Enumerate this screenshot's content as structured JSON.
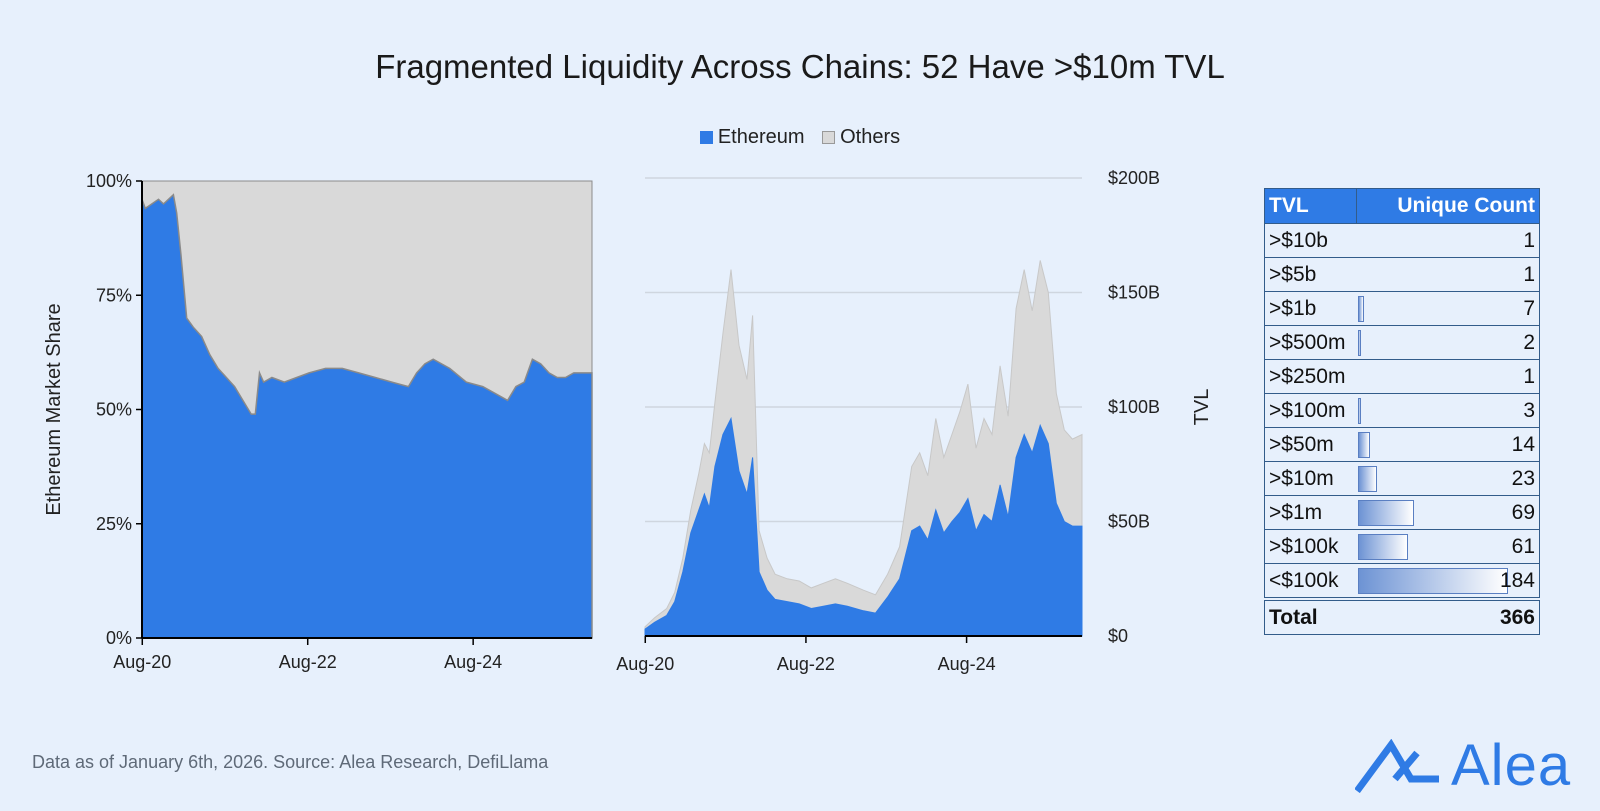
{
  "title": "Fragmented Liquidity Across Chains: 52 Have >$10m TVL",
  "legend": {
    "ethereum": "Ethereum",
    "others": "Others"
  },
  "colors": {
    "ethereum": "#2f7be5",
    "others": "#d9d9d9",
    "background": "#e7f0fc"
  },
  "chart_data": [
    {
      "type": "area",
      "title": "",
      "ylabel": "Ethereum Market Share",
      "xlabel": "",
      "ylim": [
        0,
        100
      ],
      "yticks": [
        "0%",
        "25%",
        "50%",
        "75%",
        "100%"
      ],
      "xticks": [
        "Aug-20",
        "Aug-22",
        "Aug-24"
      ],
      "x_start_year": 2020.58,
      "x_end_year": 2026.02,
      "series": [
        {
          "name": "Ethereum",
          "x": [
            2020.58,
            2020.62,
            2020.7,
            2020.78,
            2020.84,
            2020.9,
            2020.96,
            2021.0,
            2021.05,
            2021.12,
            2021.2,
            2021.3,
            2021.4,
            2021.5,
            2021.6,
            2021.7,
            2021.8,
            2021.9,
            2021.95,
            2022.0,
            2022.05,
            2022.15,
            2022.3,
            2022.45,
            2022.6,
            2022.8,
            2023.0,
            2023.2,
            2023.4,
            2023.6,
            2023.8,
            2023.9,
            2024.0,
            2024.1,
            2024.3,
            2024.5,
            2024.7,
            2024.9,
            2025.0,
            2025.1,
            2025.2,
            2025.3,
            2025.4,
            2025.5,
            2025.6,
            2025.7,
            2025.8,
            2025.9,
            2026.02
          ],
          "values": [
            96,
            94,
            95,
            96,
            95,
            96,
            97,
            93,
            84,
            70,
            68,
            66,
            62,
            59,
            57,
            55,
            52,
            49,
            49,
            58,
            56,
            57,
            56,
            57,
            58,
            59,
            59,
            58,
            57,
            56,
            55,
            58,
            60,
            61,
            59,
            56,
            55,
            53,
            52,
            55,
            56,
            61,
            60,
            58,
            57,
            57,
            58,
            58,
            58
          ],
          "color": "#2f7be5"
        },
        {
          "name": "Others",
          "values_note": "remainder to 100%",
          "color": "#d9d9d9"
        }
      ]
    },
    {
      "type": "area",
      "stacked": true,
      "title": "",
      "ylabel": "TVL",
      "ylim": [
        0,
        200
      ],
      "yticks": [
        "$0",
        "$50B",
        "$100B",
        "$150B",
        "$200B"
      ],
      "xticks": [
        "Aug-20",
        "Aug-22",
        "Aug-24"
      ],
      "x_start_year": 2020.58,
      "x_end_year": 2026.02,
      "series": [
        {
          "name": "Ethereum",
          "x": [
            2020.58,
            2020.7,
            2020.85,
            2020.95,
            2021.05,
            2021.15,
            2021.25,
            2021.32,
            2021.38,
            2021.45,
            2021.55,
            2021.65,
            2021.75,
            2021.85,
            2021.92,
            2022.0,
            2022.1,
            2022.2,
            2022.35,
            2022.5,
            2022.65,
            2022.8,
            2022.95,
            2023.1,
            2023.3,
            2023.45,
            2023.6,
            2023.75,
            2023.9,
            2024.0,
            2024.1,
            2024.2,
            2024.3,
            2024.4,
            2024.5,
            2024.6,
            2024.7,
            2024.8,
            2024.9,
            2025.0,
            2025.1,
            2025.2,
            2025.3,
            2025.4,
            2025.5,
            2025.6,
            2025.7,
            2025.8,
            2025.9,
            2026.02
          ],
          "values": [
            3,
            6,
            9,
            15,
            28,
            45,
            55,
            62,
            56,
            74,
            88,
            95,
            72,
            62,
            78,
            28,
            20,
            16,
            15,
            14,
            12,
            13,
            14,
            13,
            11,
            10,
            17,
            25,
            46,
            48,
            42,
            55,
            45,
            50,
            54,
            60,
            46,
            53,
            50,
            66,
            52,
            78,
            88,
            80,
            92,
            84,
            58,
            50,
            48,
            48
          ],
          "color": "#2f7be5"
        },
        {
          "name": "Others",
          "x": [
            2020.58,
            2020.7,
            2020.85,
            2020.95,
            2021.05,
            2021.15,
            2021.25,
            2021.32,
            2021.38,
            2021.45,
            2021.55,
            2021.65,
            2021.75,
            2021.85,
            2021.92,
            2022.0,
            2022.1,
            2022.2,
            2022.35,
            2022.5,
            2022.65,
            2022.8,
            2022.95,
            2023.1,
            2023.3,
            2023.45,
            2023.6,
            2023.75,
            2023.9,
            2024.0,
            2024.1,
            2024.2,
            2024.3,
            2024.4,
            2024.5,
            2024.6,
            2024.7,
            2024.8,
            2024.9,
            2025.0,
            2025.1,
            2025.2,
            2025.3,
            2025.4,
            2025.5,
            2025.6,
            2025.7,
            2025.8,
            2025.9,
            2026.02
          ],
          "values": [
            1,
            2,
            3,
            4,
            6,
            10,
            16,
            22,
            24,
            28,
            44,
            65,
            55,
            50,
            62,
            18,
            14,
            11,
            10,
            10,
            9,
            10,
            11,
            10,
            9,
            8,
            10,
            14,
            28,
            32,
            28,
            40,
            33,
            38,
            44,
            50,
            36,
            42,
            38,
            52,
            44,
            65,
            72,
            62,
            72,
            66,
            48,
            40,
            38,
            40
          ],
          "color": "#d9d9d9"
        }
      ]
    }
  ],
  "table": {
    "headers": [
      "TVL",
      "Unique Count"
    ],
    "rows": [
      {
        "label": ">$10b",
        "count": "1",
        "bar": 0
      },
      {
        "label": ">$5b",
        "count": "1",
        "bar": 0
      },
      {
        "label": ">$1b",
        "count": "7",
        "bar": 7
      },
      {
        "label": ">$500m",
        "count": "2",
        "bar": 2
      },
      {
        "label": ">$250m",
        "count": "1",
        "bar": 0
      },
      {
        "label": ">$100m",
        "count": "3",
        "bar": 3
      },
      {
        "label": ">$50m",
        "count": "14",
        "bar": 14
      },
      {
        "label": ">$10m",
        "count": "23",
        "bar": 23
      },
      {
        "label": ">$1m",
        "count": "69",
        "bar": 69
      },
      {
        "label": ">$100k",
        "count": "61",
        "bar": 61
      },
      {
        "label": "<$100k",
        "count": "184",
        "bar": 184
      }
    ],
    "total_label": "Total",
    "total_value": "366",
    "bar_max": 184
  },
  "footer": "Data as of January 6th, 2026. Source: Alea Research, DefiLlama",
  "logo_text": "Alea"
}
